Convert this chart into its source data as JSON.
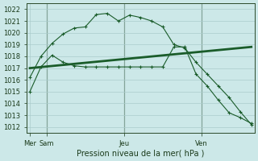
{
  "background_color": "#cce8e8",
  "grid_color": "#aacccc",
  "line_color": "#1a5c2a",
  "ylim": [
    1011.5,
    1022.5
  ],
  "yticks": [
    1012,
    1013,
    1014,
    1015,
    1016,
    1017,
    1018,
    1019,
    1020,
    1021,
    1022
  ],
  "xlabel": "Pression niveau de la mer( hPa )",
  "xlim": [
    -0.3,
    20.3
  ],
  "x_vlines": [
    1.5,
    8.5,
    15.5
  ],
  "x_tick_pos": [
    0,
    1.5,
    8.5,
    15.5
  ],
  "x_tick_labels": [
    "Mer",
    "Sam",
    "Jeu",
    "Ven"
  ],
  "series1_x": [
    0,
    1,
    2,
    3,
    4,
    5,
    6,
    7,
    8,
    9,
    10,
    11,
    12,
    13,
    14,
    15,
    16,
    17,
    18,
    19,
    20
  ],
  "series1_y": [
    1016.2,
    1018.0,
    1019.1,
    1019.9,
    1020.4,
    1020.5,
    1021.55,
    1021.65,
    1021.0,
    1021.5,
    1021.3,
    1021.0,
    1020.5,
    1019.0,
    1018.7,
    1017.5,
    1016.5,
    1015.5,
    1014.5,
    1013.3,
    1012.2
  ],
  "series2_x": [
    0,
    20
  ],
  "series2_y": [
    1017.0,
    1018.8
  ],
  "series3_x": [
    0,
    1,
    2,
    3,
    4,
    5,
    6,
    7,
    8,
    9,
    10,
    11,
    12,
    13,
    14,
    15,
    16,
    17,
    18,
    19,
    20
  ],
  "series3_y": [
    1015.0,
    1017.1,
    1018.1,
    1017.5,
    1017.2,
    1017.1,
    1017.1,
    1017.1,
    1017.1,
    1017.1,
    1017.1,
    1017.1,
    1017.1,
    1018.8,
    1018.8,
    1016.5,
    1015.5,
    1014.3,
    1013.2,
    1012.8,
    1012.3
  ]
}
